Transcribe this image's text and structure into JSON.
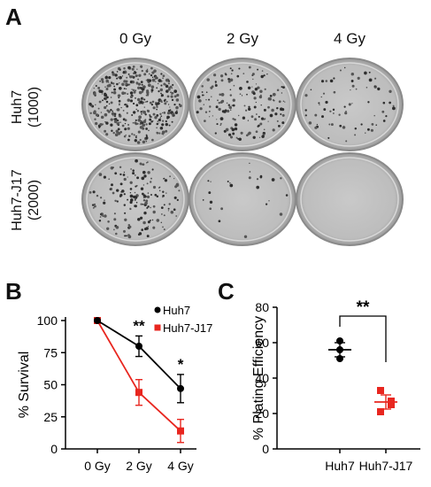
{
  "panels": {
    "a": {
      "letter": "A"
    },
    "b": {
      "letter": "B"
    },
    "c": {
      "letter": "C"
    }
  },
  "dishes": {
    "doses": [
      "0 Gy",
      "2 Gy",
      "4 Gy"
    ],
    "rows": [
      {
        "line1": "Huh7",
        "line2": "(1000)",
        "colony_density": [
          "high",
          "medium",
          "low"
        ]
      },
      {
        "line1": "Huh7-J17",
        "line2": "(2000)",
        "colony_density": [
          "medium",
          "very low",
          "none"
        ]
      }
    ]
  },
  "chart_data": [
    {
      "type": "line",
      "ylabel": "% Survival",
      "xlabel": "",
      "categories": [
        "0 Gy",
        "2 Gy",
        "4 Gy"
      ],
      "ylim": [
        0,
        100
      ],
      "yticks": [
        0,
        25,
        50,
        75,
        100
      ],
      "legend_position": "top-right",
      "series": [
        {
          "name": "Huh7",
          "color": "#000000",
          "marker": "circle",
          "values": [
            100,
            80,
            47
          ],
          "errors": [
            0,
            8,
            11
          ]
        },
        {
          "name": "Huh7-J17",
          "color": "#e8261f",
          "marker": "square",
          "values": [
            100,
            44,
            14
          ],
          "errors": [
            0,
            10,
            9
          ]
        }
      ],
      "annotations": [
        {
          "category": "2 Gy",
          "text": "**"
        },
        {
          "category": "4 Gy",
          "text": "*"
        }
      ]
    },
    {
      "type": "scatter",
      "ylabel": "% Plating Efficiency",
      "xlabel": "",
      "categories": [
        "Huh7",
        "Huh7-J17"
      ],
      "ylim": [
        0,
        80
      ],
      "yticks": [
        0,
        20,
        40,
        60,
        80
      ],
      "series": [
        {
          "name": "Huh7",
          "color": "#000000",
          "marker": "circle",
          "points": [
            61,
            56,
            51
          ],
          "mean": 56,
          "error": 4
        },
        {
          "name": "Huh7-J17",
          "color": "#e8261f",
          "marker": "square",
          "points": [
            33,
            27,
            25,
            21
          ],
          "mean": 26.5,
          "error": 4
        }
      ],
      "significance": "**"
    }
  ]
}
